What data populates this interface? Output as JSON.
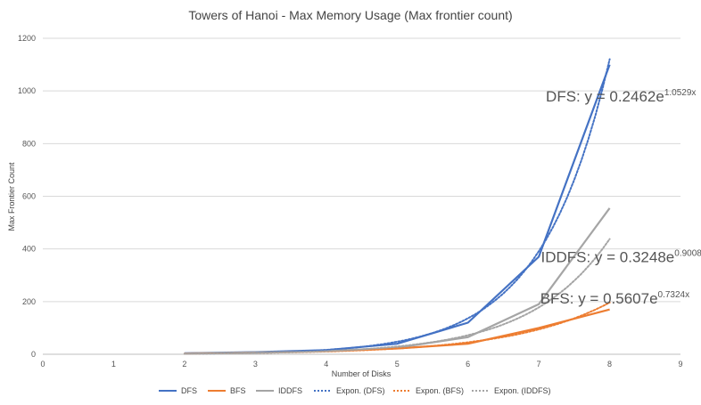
{
  "chart_data": {
    "type": "line",
    "title": "Towers of Hanoi - Max Memory Usage (Max frontier count)",
    "xlabel": "Number of Disks",
    "ylabel": "Max Frontier Count",
    "xlim": [
      0,
      9
    ],
    "ylim": [
      0,
      1200
    ],
    "x_ticks": [
      "0",
      "1",
      "2",
      "3",
      "4",
      "5",
      "6",
      "7",
      "8",
      "9"
    ],
    "y_ticks": [
      "0",
      "200",
      "400",
      "600",
      "800",
      "1000",
      "1200"
    ],
    "grid": "horizontal",
    "legend_position": "bottom",
    "x": [
      2,
      3,
      4,
      5,
      6,
      7,
      8
    ],
    "series": [
      {
        "name": "DFS",
        "color": "#4472C4",
        "style": "solid",
        "values": [
          4,
          8,
          16,
          40,
          120,
          370,
          1100
        ]
      },
      {
        "name": "BFS",
        "color": "#ED7D31",
        "style": "solid",
        "values": [
          3,
          6,
          12,
          22,
          40,
          100,
          170
        ]
      },
      {
        "name": "IDDFS",
        "color": "#A5A5A5",
        "style": "solid",
        "values": [
          3,
          7,
          12,
          25,
          65,
          190,
          555
        ]
      },
      {
        "name": "Expon. (DFS)",
        "color": "#4472C4",
        "style": "dotted",
        "trend": {
          "a": 0.2462,
          "b": 1.0529
        }
      },
      {
        "name": "Expon. (BFS)",
        "color": "#ED7D31",
        "style": "dotted",
        "trend": {
          "a": 0.5607,
          "b": 0.7324
        }
      },
      {
        "name": "Expon. (IDDFS)",
        "color": "#A5A5A5",
        "style": "dotted",
        "trend": {
          "a": 0.3248,
          "b": 0.9008
        }
      }
    ],
    "annotations": [
      {
        "series": "DFS",
        "text": "DFS: y = 0.2462e",
        "sup": "1.0529x"
      },
      {
        "series": "IDDFS",
        "text": "IDDFS: y = 0.3248e",
        "sup": "0.9008x"
      },
      {
        "series": "BFS",
        "text": "BFS: y = 0.5607e",
        "sup": "0.7324x"
      }
    ]
  }
}
